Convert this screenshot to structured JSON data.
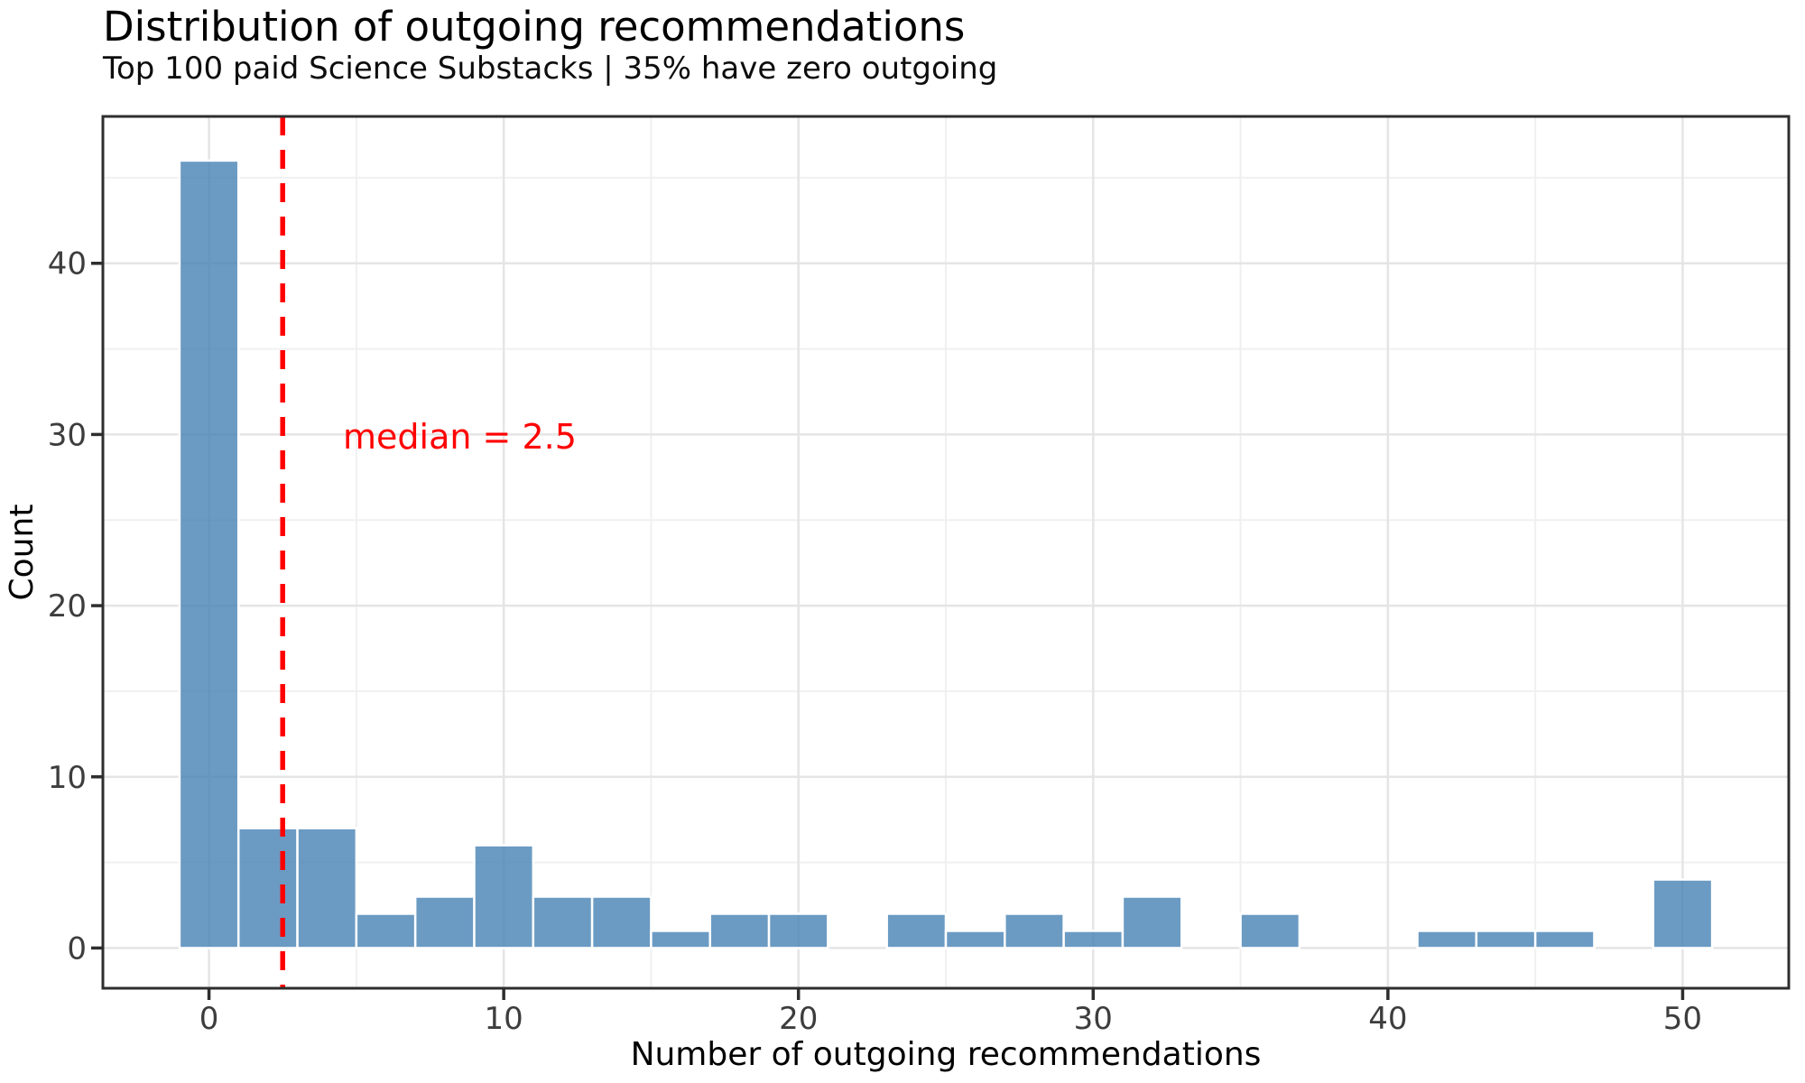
{
  "chart_data": {
    "type": "bar",
    "subtype": "histogram",
    "title": "Distribution of outgoing recommendations",
    "subtitle": "Top 100 paid Science Substacks | 35% have zero outgoing",
    "xlabel": "Number of outgoing recommendations",
    "ylabel": "Count",
    "binwidth": 2,
    "bin_centers": [
      0,
      2,
      4,
      6,
      8,
      10,
      12,
      14,
      16,
      18,
      20,
      22,
      24,
      26,
      28,
      30,
      32,
      34,
      36,
      38,
      40,
      42,
      44,
      46,
      48,
      50
    ],
    "counts": [
      46,
      7,
      7,
      2,
      3,
      6,
      3,
      3,
      1,
      2,
      2,
      0,
      2,
      1,
      2,
      1,
      3,
      0,
      2,
      0,
      0,
      1,
      1,
      1,
      0,
      4
    ],
    "total_n": 100,
    "median": 2.5,
    "annotation": "median = 2.5",
    "x_ticks": [
      0,
      10,
      20,
      30,
      40,
      50
    ],
    "y_ticks": [
      0,
      10,
      20,
      30,
      40
    ],
    "x_minor_ticks": [
      5,
      15,
      25,
      35,
      45
    ],
    "y_minor_ticks": [
      5,
      15,
      25,
      35,
      45
    ],
    "xlim": [
      -3.6,
      53.6
    ],
    "ylim": [
      -2.35,
      48.58
    ],
    "grid": true,
    "legend": "none",
    "colors": {
      "background": "#ffffff",
      "bar_fill": "#4682b4",
      "bar_opacity": 0.8,
      "bar_edge": "#ffffff",
      "median_line": "#ff0000",
      "grid_major": "#e5e5e5",
      "grid_minor": "#f0f0f0",
      "spine": "#2e2e2e",
      "tick": "#2e2e2e",
      "tick_label": "#3d3d3d"
    }
  }
}
